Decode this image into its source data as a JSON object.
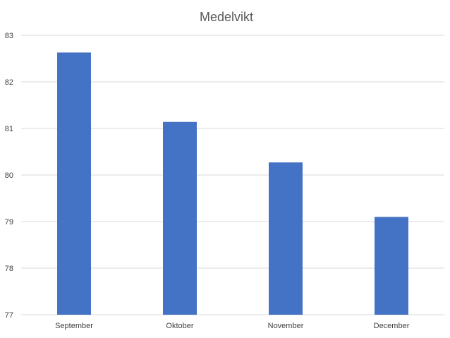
{
  "chart_data": {
    "type": "bar",
    "title": "Medelvikt",
    "xlabel": "",
    "ylabel": "",
    "categories": [
      "September",
      "Oktober",
      "November",
      "December"
    ],
    "values": [
      82.63,
      81.14,
      80.27,
      79.1
    ],
    "ylim": [
      77,
      83
    ],
    "yticks": [
      "77",
      "78",
      "79",
      "80",
      "81",
      "82",
      "83"
    ],
    "grid": true,
    "legend": "none",
    "bar_color": "#4472C4",
    "grid_color": "#d9d9d9"
  }
}
